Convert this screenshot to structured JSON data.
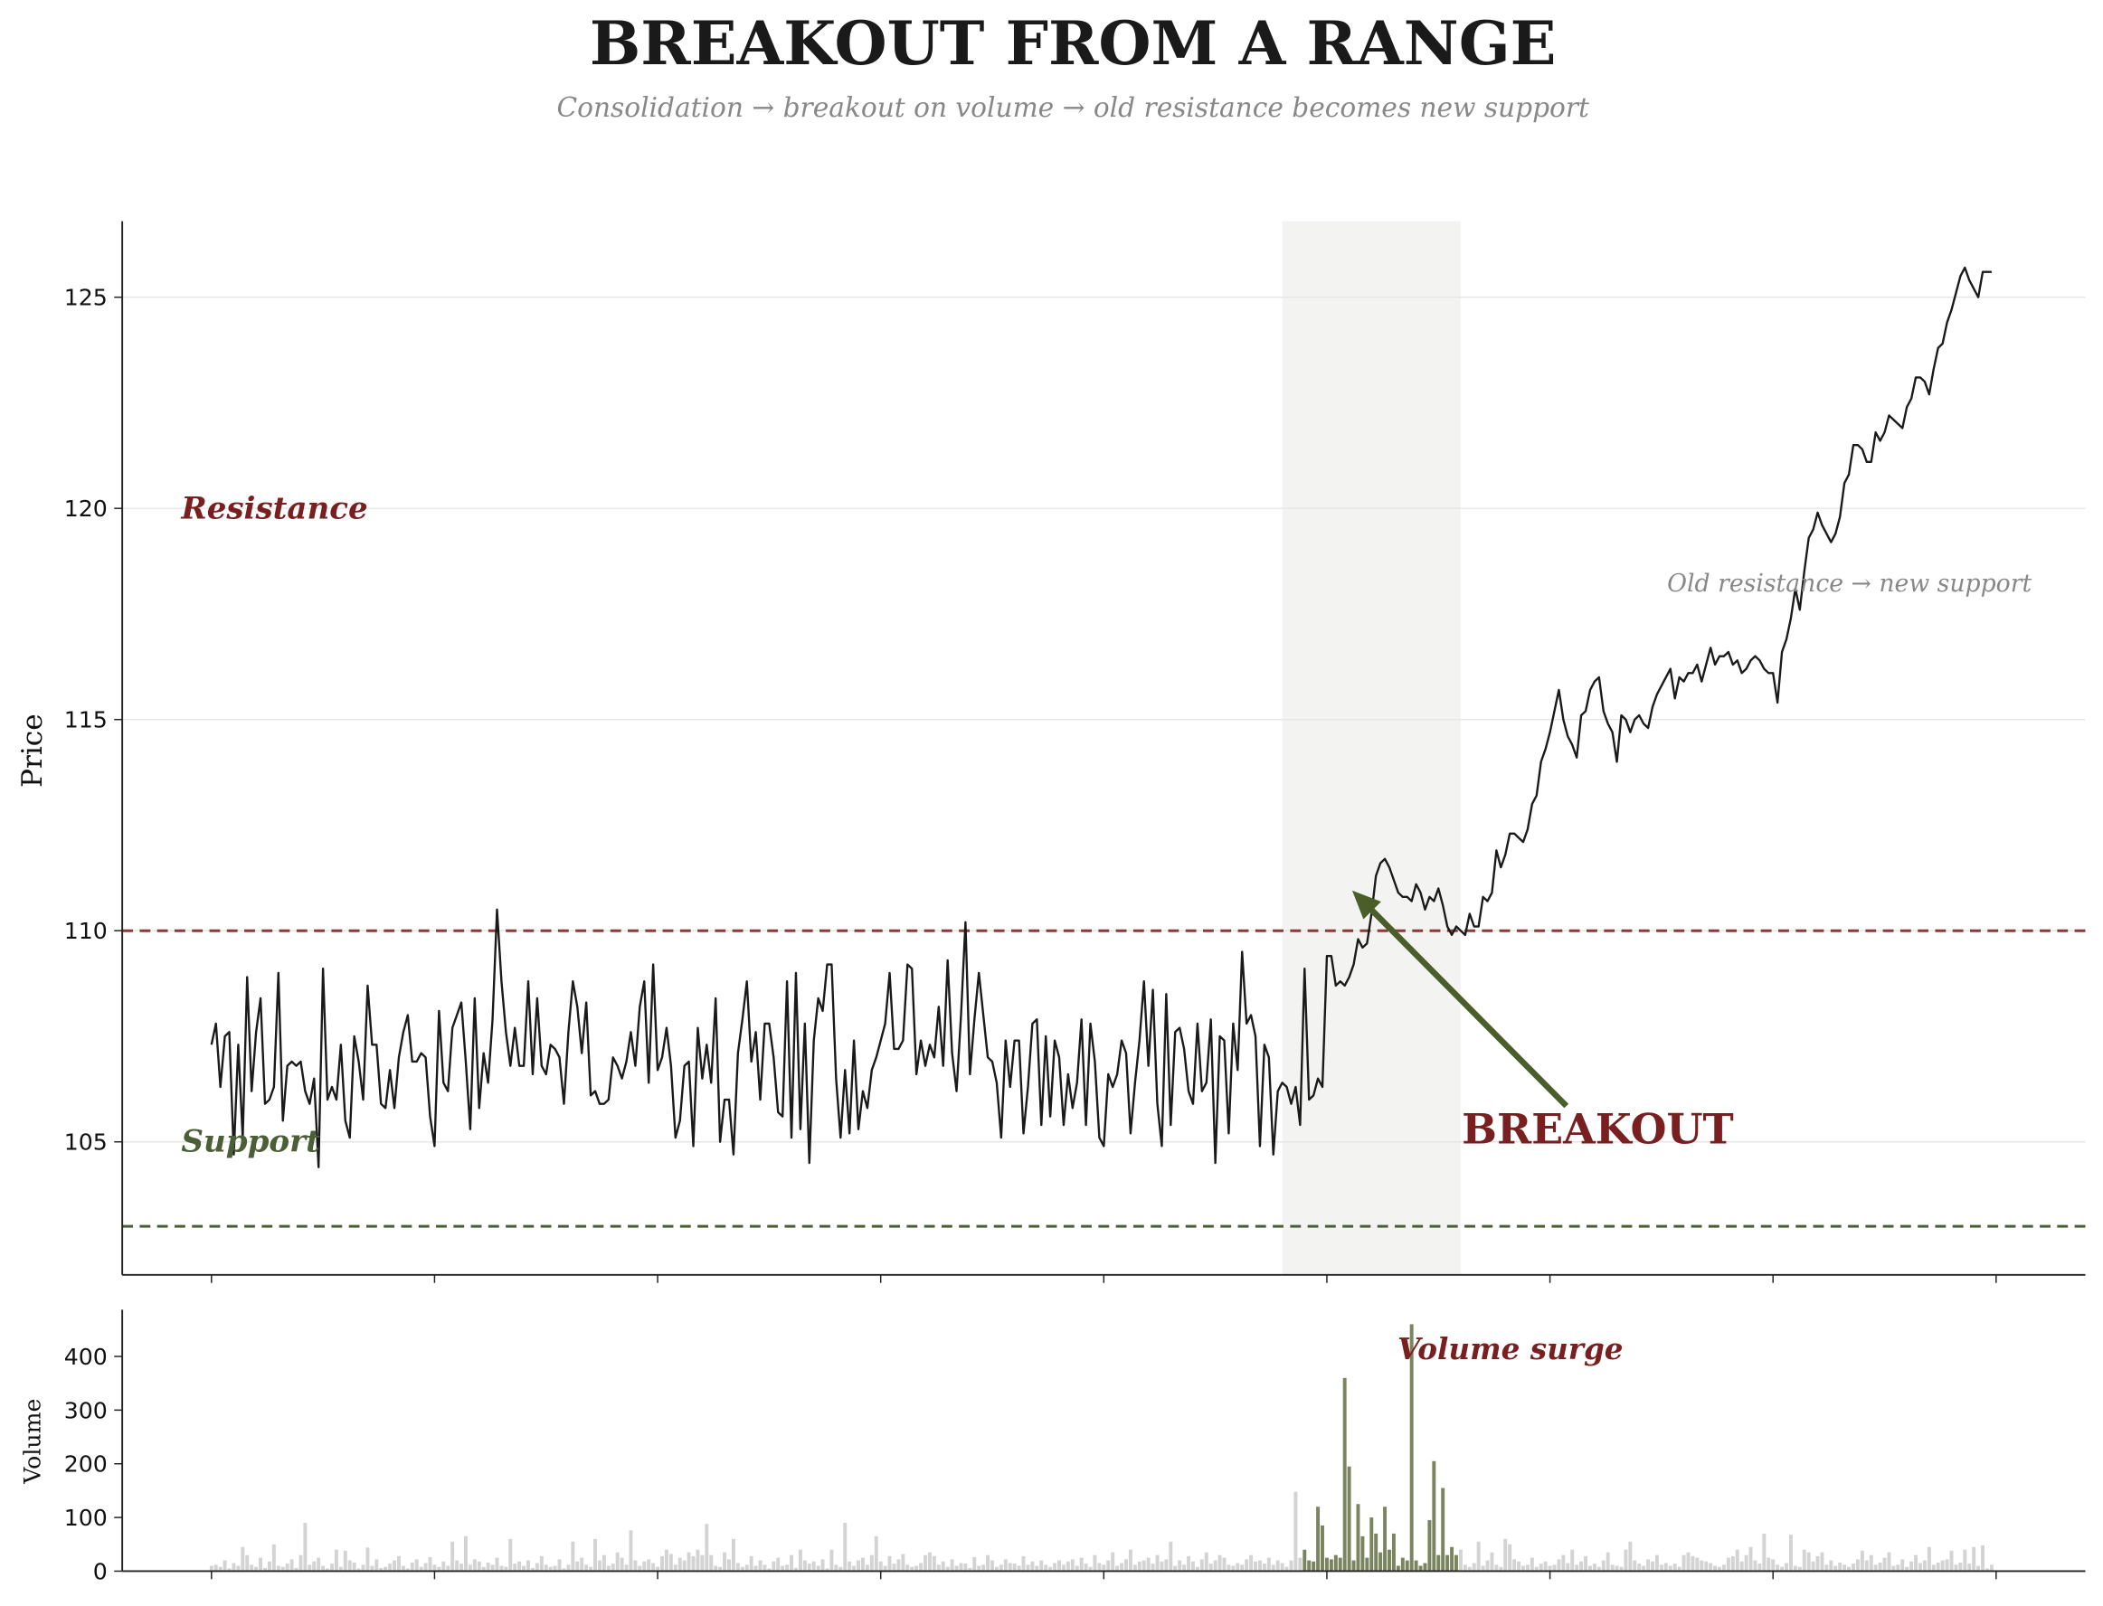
{
  "chart_data": [
    {
      "type": "line",
      "title": "BREAKOUT FROM A RANGE",
      "subtitle": "Consolidation → breakout on volume → old resistance becomes new support",
      "y_label": "Price",
      "xlim": [
        -20,
        420
      ],
      "xticks": [
        0,
        50,
        100,
        150,
        200,
        250,
        300,
        350,
        400
      ],
      "ylim": [
        101.85,
        126.8
      ],
      "yticks": [
        105,
        110,
        115,
        120,
        125
      ],
      "grid": true,
      "shaded_range": [
        240,
        280
      ],
      "resistance": {
        "value": 110,
        "label": "Resistance",
        "color": "#8b3a3a"
      },
      "support": {
        "value": 103,
        "label": "Support",
        "color": "#4b5e36"
      },
      "breakout_label": "BREAKOUT",
      "retest_label": "Old resistance → new support",
      "color": "#1a1a1a",
      "values": [
        107.3,
        107.8,
        106.3,
        107.5,
        107.6,
        104.7,
        107.3,
        105.1,
        108.9,
        106.2,
        107.6,
        108.4,
        105.9,
        106.0,
        106.3,
        109.0,
        105.5,
        106.8,
        106.9,
        106.8,
        106.9,
        106.2,
        105.9,
        106.5,
        104.4,
        109.1,
        106.0,
        106.3,
        106.0,
        107.3,
        105.5,
        105.1,
        107.5,
        106.9,
        106.0,
        108.7,
        107.3,
        107.3,
        105.9,
        105.8,
        106.7,
        105.8,
        107.0,
        107.6,
        108.0,
        106.9,
        106.9,
        107.1,
        107.0,
        105.6,
        104.9,
        108.1,
        106.4,
        106.2,
        107.7,
        108.0,
        108.3,
        106.9,
        105.3,
        108.4,
        105.8,
        107.1,
        106.4,
        107.9,
        110.5,
        108.8,
        107.6,
        106.8,
        107.7,
        106.8,
        106.8,
        108.8,
        106.6,
        108.4,
        106.8,
        106.6,
        107.3,
        107.2,
        107.0,
        105.9,
        107.6,
        108.8,
        108.2,
        107.1,
        108.3,
        106.1,
        106.2,
        105.9,
        105.9,
        106.0,
        107.0,
        106.8,
        106.5,
        106.9,
        107.6,
        106.8,
        108.2,
        108.8,
        106.4,
        109.2,
        106.7,
        107.0,
        107.7,
        106.8,
        105.1,
        105.5,
        106.8,
        106.9,
        104.9,
        107.7,
        106.5,
        107.3,
        106.4,
        108.4,
        105.0,
        106.0,
        106.0,
        104.7,
        107.1,
        107.9,
        108.8,
        106.9,
        107.6,
        106.0,
        107.8,
        107.8,
        107.0,
        105.7,
        105.6,
        108.8,
        105.1,
        109.0,
        105.3,
        107.8,
        104.5,
        107.4,
        108.4,
        108.1,
        109.2,
        109.2,
        106.5,
        105.1,
        106.7,
        105.2,
        107.4,
        105.3,
        106.2,
        105.8,
        106.7,
        107.0,
        107.4,
        107.8,
        109.0,
        107.2,
        107.2,
        107.4,
        109.2,
        109.1,
        106.6,
        107.4,
        106.8,
        107.3,
        107.0,
        108.2,
        106.8,
        109.3,
        107.1,
        106.2,
        108.0,
        110.2,
        106.6,
        107.9,
        109.0,
        108.0,
        107.0,
        106.9,
        106.4,
        105.1,
        107.4,
        106.3,
        107.4,
        107.4,
        105.2,
        106.3,
        107.8,
        107.9,
        105.4,
        107.5,
        105.6,
        107.4,
        107.0,
        105.4,
        106.6,
        105.8,
        106.4,
        107.9,
        105.4,
        107.8,
        106.9,
        105.1,
        104.9,
        106.6,
        106.3,
        106.6,
        107.4,
        107.1,
        105.2,
        106.4,
        107.4,
        108.8,
        106.8,
        108.6,
        105.9,
        104.9,
        108.5,
        105.4,
        107.6,
        107.7,
        107.2,
        106.2,
        105.9,
        107.8,
        106.2,
        106.4,
        107.9,
        104.5,
        107.5,
        107.4,
        105.2,
        107.8,
        106.7,
        109.5,
        107.8,
        108.0,
        107.5,
        104.9,
        107.3,
        107.0,
        104.7,
        106.2,
        106.4,
        106.3,
        105.9,
        106.3,
        105.4,
        109.1,
        106.0,
        106.1,
        106.5,
        106.3,
        109.4,
        109.4,
        108.7,
        108.8,
        108.7,
        108.9,
        109.2,
        109.8,
        109.6,
        109.7,
        110.4,
        111.3,
        111.6,
        111.7,
        111.5,
        111.2,
        110.9,
        110.8,
        110.8,
        110.7,
        111.1,
        110.9,
        110.5,
        110.8,
        110.7,
        111.0,
        110.6,
        110.1,
        109.9,
        110.1,
        110.0,
        109.9,
        110.4,
        110.1,
        110.1,
        110.8,
        110.7,
        110.9,
        111.9,
        111.5,
        111.8,
        112.3,
        112.3,
        112.2,
        112.1,
        112.4,
        113.0,
        113.2,
        114.0,
        114.3,
        114.7,
        115.2,
        115.7,
        115.0,
        114.6,
        114.4,
        114.1,
        115.1,
        115.2,
        115.7,
        115.9,
        116.0,
        115.2,
        114.9,
        114.7,
        114.0,
        115.1,
        115.0,
        114.7,
        115.0,
        115.1,
        114.9,
        114.8,
        115.3,
        115.6,
        115.8,
        116.0,
        116.2,
        115.5,
        116.0,
        115.9,
        116.1,
        116.1,
        116.3,
        115.9,
        116.3,
        116.7,
        116.3,
        116.5,
        116.5,
        116.6,
        116.3,
        116.4,
        116.1,
        116.2,
        116.4,
        116.5,
        116.4,
        116.2,
        116.1,
        116.1,
        115.4,
        116.6,
        116.9,
        117.4,
        118.1,
        117.6,
        118.5,
        119.3,
        119.5,
        119.9,
        119.6,
        119.4,
        119.2,
        119.4,
        119.8,
        120.6,
        120.8,
        121.5,
        121.5,
        121.4,
        121.1,
        121.1,
        121.8,
        121.6,
        121.8,
        122.2,
        122.1,
        122.0,
        121.9,
        122.4,
        122.6,
        123.1,
        123.1,
        123.0,
        122.7,
        123.3,
        123.8,
        123.9,
        124.4,
        124.7,
        125.1,
        125.5,
        125.7,
        125.4,
        125.2,
        125.0,
        125.6,
        125.6,
        125.6
      ]
    },
    {
      "type": "bar",
      "y_label": "Volume",
      "surge_label": "Volume surge",
      "xlim": [
        -20,
        420
      ],
      "xticks": [
        0,
        50,
        100,
        150,
        200,
        250,
        300,
        350,
        400
      ],
      "ylim": [
        0,
        487
      ],
      "yticks": [
        0,
        100,
        200,
        300,
        400
      ],
      "color": "#d3d3d3",
      "highlight_color": "#7a8560",
      "highlight_range": [
        245,
        280
      ],
      "values": [
        10,
        12,
        8,
        20,
        5,
        15,
        10,
        45,
        30,
        12,
        8,
        25,
        6,
        18,
        50,
        10,
        8,
        14,
        22,
        6,
        30,
        90,
        12,
        18,
        25,
        10,
        5,
        14,
        40,
        8,
        38,
        20,
        16,
        5,
        12,
        44,
        10,
        22,
        6,
        8,
        14,
        20,
        28,
        10,
        5,
        16,
        22,
        8,
        15,
        26,
        12,
        8,
        18,
        10,
        55,
        20,
        14,
        65,
        12,
        22,
        18,
        8,
        16,
        12,
        25,
        10,
        8,
        60,
        14,
        18,
        10,
        20,
        6,
        15,
        28,
        12,
        8,
        10,
        22,
        5,
        12,
        55,
        18,
        25,
        12,
        8,
        60,
        20,
        30,
        10,
        14,
        35,
        25,
        12,
        76,
        20,
        10,
        18,
        22,
        15,
        8,
        28,
        40,
        32,
        12,
        25,
        20,
        35,
        28,
        40,
        30,
        88,
        30,
        10,
        8,
        35,
        22,
        60,
        15,
        8,
        12,
        28,
        10,
        20,
        12,
        5,
        18,
        25,
        10,
        12,
        30,
        6,
        40,
        20,
        14,
        18,
        10,
        22,
        5,
        40,
        12,
        8,
        90,
        18,
        10,
        20,
        25,
        12,
        30,
        65,
        18,
        10,
        28,
        14,
        22,
        32,
        12,
        8,
        10,
        15,
        30,
        35,
        28,
        12,
        18,
        8,
        22,
        10,
        15,
        14,
        6,
        26,
        10,
        12,
        30,
        20,
        8,
        12,
        22,
        15,
        14,
        10,
        28,
        12,
        18,
        10,
        20,
        12,
        8,
        15,
        20,
        12,
        18,
        22,
        10,
        25,
        14,
        8,
        30,
        15,
        12,
        20,
        35,
        10,
        15,
        22,
        40,
        12,
        18,
        20,
        25,
        14,
        30,
        18,
        22,
        55,
        10,
        20,
        12,
        28,
        18,
        8,
        22,
        35,
        14,
        20,
        30,
        25,
        12,
        10,
        15,
        12,
        22,
        30,
        18,
        20,
        14,
        25,
        12,
        20,
        15,
        8,
        20,
        148,
        25,
        40,
        20,
        18,
        120,
        85,
        25,
        22,
        30,
        25,
        360,
        195,
        20,
        125,
        65,
        25,
        100,
        70,
        35,
        120,
        40,
        70,
        10,
        25,
        20,
        460,
        20,
        10,
        15,
        95,
        205,
        30,
        155,
        30,
        45,
        30,
        40,
        12,
        8,
        15,
        55,
        10,
        20,
        35,
        12,
        8,
        60,
        50,
        22,
        18,
        10,
        12,
        25,
        8,
        14,
        18,
        10,
        12,
        22,
        30,
        15,
        40,
        12,
        18,
        28,
        10,
        14,
        8,
        20,
        35,
        12,
        10,
        8,
        40,
        55,
        20,
        14,
        10,
        22,
        18,
        30,
        12,
        15,
        10,
        14,
        8,
        30,
        35,
        28,
        25,
        20,
        18,
        15,
        10,
        8,
        12,
        25,
        28,
        40,
        18,
        30,
        45,
        20,
        14,
        70,
        25,
        22,
        12,
        8,
        15,
        68,
        10,
        8,
        40,
        35,
        18,
        28,
        35,
        12,
        20,
        10,
        16,
        12,
        8,
        14,
        22,
        38,
        20,
        30,
        12,
        16,
        25,
        35,
        10,
        12,
        22,
        8,
        18,
        30,
        15,
        20,
        45,
        12,
        16,
        20,
        22,
        38,
        12,
        16,
        40,
        14,
        45,
        10,
        48,
        5,
        12
      ]
    }
  ]
}
